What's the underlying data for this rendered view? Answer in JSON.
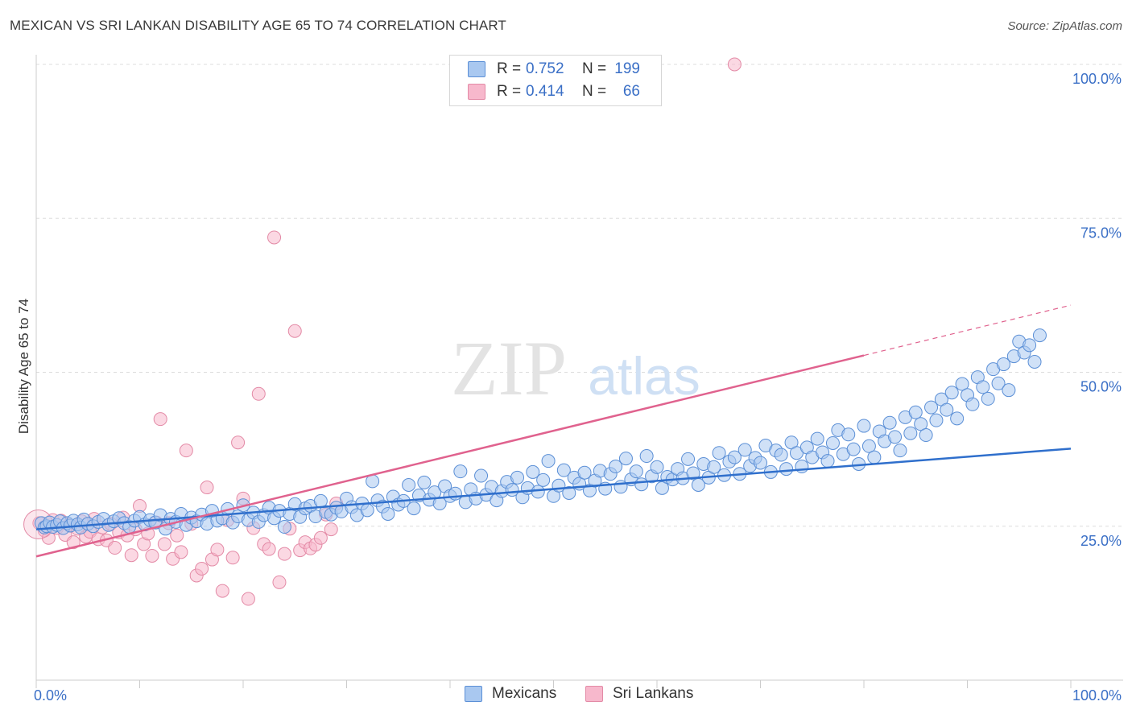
{
  "title": "MEXICAN VS SRI LANKAN DISABILITY AGE 65 TO 74 CORRELATION CHART",
  "source": "Source: ZipAtlas.com",
  "watermark": {
    "zip": "ZIP",
    "atlas": "atlas"
  },
  "legend": {
    "rows": [
      {
        "r_label": "R =",
        "r_value": "0.752",
        "n_label": "N =",
        "n_value": "199",
        "color": "#a9c8f0"
      },
      {
        "r_label": "R =",
        "r_value": "0.414",
        "n_label": "N =",
        "n_value": "66",
        "color": "#f7b8cc"
      }
    ]
  },
  "colors": {
    "blue_fill": "#a9c8f0",
    "blue_stroke": "#5b8fd6",
    "blue_line": "#2f6fcc",
    "pink_fill": "#f7b8cc",
    "pink_stroke": "#e38aa6",
    "pink_line": "#e0628e",
    "grid": "#dddddd",
    "tick_label": "#3a6fc6"
  },
  "chart_data": {
    "type": "scatter",
    "title": "MEXICAN VS SRI LANKAN DISABILITY AGE 65 TO 74 CORRELATION CHART",
    "xlabel": "",
    "ylabel": "Disability Age 65 to 74",
    "xlim": [
      0,
      100
    ],
    "ylim": [
      0,
      100
    ],
    "x_tick_labels": [
      "0.0%",
      "100.0%"
    ],
    "y_tick_labels": [
      "25.0%",
      "50.0%",
      "75.0%",
      "100.0%"
    ],
    "grid": true,
    "series": [
      {
        "name": "Mexicans",
        "r": 0.752,
        "n": 199,
        "trend": {
          "x": [
            0,
            100
          ],
          "y": [
            24.5,
            37.6
          ]
        },
        "points": [
          [
            0.5,
            25.5
          ],
          [
            0.8,
            24.8
          ],
          [
            1.0,
            25.0
          ],
          [
            1.3,
            25.6
          ],
          [
            1.6,
            24.9
          ],
          [
            2.0,
            25.2
          ],
          [
            2.3,
            25.8
          ],
          [
            2.6,
            24.7
          ],
          [
            3.0,
            25.5
          ],
          [
            3.3,
            25.1
          ],
          [
            3.6,
            25.9
          ],
          [
            4.0,
            25.3
          ],
          [
            4.3,
            24.8
          ],
          [
            4.6,
            26.1
          ],
          [
            5.0,
            25.4
          ],
          [
            5.5,
            25.0
          ],
          [
            6.0,
            25.7
          ],
          [
            6.5,
            26.2
          ],
          [
            7.0,
            25.2
          ],
          [
            7.5,
            25.8
          ],
          [
            8.0,
            26.3
          ],
          [
            8.5,
            25.5
          ],
          [
            9.0,
            24.9
          ],
          [
            9.5,
            25.9
          ],
          [
            10.0,
            26.5
          ],
          [
            10.5,
            25.3
          ],
          [
            11.0,
            26.0
          ],
          [
            11.5,
            25.6
          ],
          [
            12.0,
            26.8
          ],
          [
            12.5,
            24.6
          ],
          [
            13.0,
            26.2
          ],
          [
            13.5,
            25.7
          ],
          [
            14.0,
            27.0
          ],
          [
            14.5,
            25.2
          ],
          [
            15.0,
            26.4
          ],
          [
            15.5,
            25.8
          ],
          [
            16.0,
            26.9
          ],
          [
            16.5,
            25.4
          ],
          [
            17.0,
            27.5
          ],
          [
            17.5,
            25.9
          ],
          [
            18.0,
            26.3
          ],
          [
            18.5,
            27.8
          ],
          [
            19.0,
            25.6
          ],
          [
            19.5,
            26.6
          ],
          [
            20.0,
            28.4
          ],
          [
            20.5,
            26.0
          ],
          [
            21.0,
            27.2
          ],
          [
            21.5,
            25.7
          ],
          [
            22.0,
            26.8
          ],
          [
            22.5,
            28.0
          ],
          [
            23.0,
            26.3
          ],
          [
            23.5,
            27.5
          ],
          [
            24.0,
            24.9
          ],
          [
            24.5,
            27.0
          ],
          [
            25.0,
            28.6
          ],
          [
            25.5,
            26.5
          ],
          [
            26.0,
            27.9
          ],
          [
            26.5,
            28.3
          ],
          [
            27.0,
            26.6
          ],
          [
            27.5,
            29.1
          ],
          [
            28.0,
            27.3
          ],
          [
            28.5,
            26.9
          ],
          [
            29.0,
            28.0
          ],
          [
            29.5,
            27.4
          ],
          [
            30.0,
            29.5
          ],
          [
            30.5,
            28.1
          ],
          [
            31.0,
            26.8
          ],
          [
            31.5,
            28.7
          ],
          [
            32.0,
            27.6
          ],
          [
            32.5,
            32.3
          ],
          [
            33.0,
            29.2
          ],
          [
            33.5,
            28.2
          ],
          [
            34.0,
            27.0
          ],
          [
            34.5,
            29.8
          ],
          [
            35.0,
            28.5
          ],
          [
            35.5,
            29.1
          ],
          [
            36.0,
            31.7
          ],
          [
            36.5,
            27.9
          ],
          [
            37.0,
            30.0
          ],
          [
            37.5,
            32.1
          ],
          [
            38.0,
            29.3
          ],
          [
            38.5,
            30.5
          ],
          [
            39.0,
            28.7
          ],
          [
            39.5,
            31.5
          ],
          [
            40.0,
            29.9
          ],
          [
            40.5,
            30.3
          ],
          [
            41.0,
            33.9
          ],
          [
            41.5,
            28.9
          ],
          [
            42.0,
            31.0
          ],
          [
            42.5,
            29.5
          ],
          [
            43.0,
            33.2
          ],
          [
            43.5,
            30.1
          ],
          [
            44.0,
            31.4
          ],
          [
            44.5,
            29.2
          ],
          [
            45.0,
            30.7
          ],
          [
            45.5,
            32.2
          ],
          [
            46.0,
            30.9
          ],
          [
            46.5,
            32.9
          ],
          [
            47.0,
            29.7
          ],
          [
            47.5,
            31.2
          ],
          [
            48.0,
            33.8
          ],
          [
            48.5,
            30.6
          ],
          [
            49.0,
            32.5
          ],
          [
            49.5,
            35.6
          ],
          [
            50.0,
            29.9
          ],
          [
            50.5,
            31.6
          ],
          [
            51.0,
            34.1
          ],
          [
            51.5,
            30.4
          ],
          [
            52.0,
            32.9
          ],
          [
            52.5,
            31.9
          ],
          [
            53.0,
            33.7
          ],
          [
            53.5,
            30.8
          ],
          [
            54.0,
            32.4
          ],
          [
            54.5,
            34.0
          ],
          [
            55.0,
            31.1
          ],
          [
            55.5,
            33.5
          ],
          [
            56.0,
            34.7
          ],
          [
            56.5,
            31.4
          ],
          [
            57.0,
            36.0
          ],
          [
            57.5,
            32.6
          ],
          [
            58.0,
            33.9
          ],
          [
            58.5,
            31.8
          ],
          [
            59.0,
            36.4
          ],
          [
            59.5,
            33.1
          ],
          [
            60.0,
            34.6
          ],
          [
            60.5,
            31.2
          ],
          [
            61.0,
            33.0
          ],
          [
            61.5,
            32.6
          ],
          [
            62.0,
            34.3
          ],
          [
            62.5,
            32.8
          ],
          [
            63.0,
            35.9
          ],
          [
            63.5,
            33.6
          ],
          [
            64.0,
            31.7
          ],
          [
            64.5,
            35.1
          ],
          [
            65.0,
            32.9
          ],
          [
            65.5,
            34.6
          ],
          [
            66.0,
            36.9
          ],
          [
            66.5,
            33.3
          ],
          [
            67.0,
            35.5
          ],
          [
            67.5,
            36.2
          ],
          [
            68.0,
            33.5
          ],
          [
            68.5,
            37.4
          ],
          [
            69.0,
            34.8
          ],
          [
            69.5,
            36.1
          ],
          [
            70.0,
            35.3
          ],
          [
            70.5,
            38.1
          ],
          [
            71.0,
            33.8
          ],
          [
            71.5,
            37.3
          ],
          [
            72.0,
            36.6
          ],
          [
            72.5,
            34.3
          ],
          [
            73.0,
            38.6
          ],
          [
            73.5,
            36.9
          ],
          [
            74.0,
            34.7
          ],
          [
            74.5,
            37.8
          ],
          [
            75.0,
            36.2
          ],
          [
            75.5,
            39.2
          ],
          [
            76.0,
            37.0
          ],
          [
            76.5,
            35.6
          ],
          [
            77.0,
            38.5
          ],
          [
            77.5,
            40.6
          ],
          [
            78.0,
            36.7
          ],
          [
            78.5,
            39.9
          ],
          [
            79.0,
            37.5
          ],
          [
            79.5,
            35.1
          ],
          [
            80.0,
            41.3
          ],
          [
            80.5,
            38.0
          ],
          [
            81.0,
            36.2
          ],
          [
            81.5,
            40.4
          ],
          [
            82.0,
            38.8
          ],
          [
            82.5,
            41.8
          ],
          [
            83.0,
            39.5
          ],
          [
            83.5,
            37.3
          ],
          [
            84.0,
            42.7
          ],
          [
            84.5,
            40.1
          ],
          [
            85.0,
            43.5
          ],
          [
            85.5,
            41.6
          ],
          [
            86.0,
            39.8
          ],
          [
            86.5,
            44.3
          ],
          [
            87.0,
            42.2
          ],
          [
            87.5,
            45.6
          ],
          [
            88.0,
            43.9
          ],
          [
            88.5,
            46.7
          ],
          [
            89.0,
            42.5
          ],
          [
            89.5,
            48.1
          ],
          [
            90.0,
            46.3
          ],
          [
            90.5,
            44.8
          ],
          [
            91.0,
            49.2
          ],
          [
            91.5,
            47.6
          ],
          [
            92.0,
            45.7
          ],
          [
            92.5,
            50.5
          ],
          [
            93.0,
            48.2
          ],
          [
            93.5,
            51.3
          ],
          [
            94.0,
            47.1
          ],
          [
            94.5,
            52.6
          ],
          [
            95.0,
            55.0
          ],
          [
            95.5,
            53.2
          ],
          [
            96.0,
            54.4
          ],
          [
            96.5,
            51.7
          ],
          [
            97.0,
            56.0
          ]
        ]
      },
      {
        "name": "Sri Lankans",
        "r": 0.414,
        "n": 66,
        "trend": {
          "x": [
            0,
            100
          ],
          "y": [
            20.1,
            60.9
          ]
        },
        "points": [
          [
            0.3,
            25.5
          ],
          [
            0.8,
            24.3
          ],
          [
            1.2,
            23.1
          ],
          [
            1.6,
            26.0
          ],
          [
            2.0,
            24.7
          ],
          [
            2.4,
            25.9
          ],
          [
            2.8,
            23.6
          ],
          [
            3.2,
            25.2
          ],
          [
            3.6,
            22.4
          ],
          [
            4.0,
            24.6
          ],
          [
            4.4,
            25.8
          ],
          [
            4.8,
            23.3
          ],
          [
            5.2,
            24.1
          ],
          [
            5.6,
            26.2
          ],
          [
            6.0,
            22.9
          ],
          [
            6.4,
            24.8
          ],
          [
            6.8,
            22.7
          ],
          [
            7.2,
            25.4
          ],
          [
            7.6,
            21.5
          ],
          [
            8.0,
            24.0
          ],
          [
            8.4,
            26.4
          ],
          [
            8.8,
            23.5
          ],
          [
            9.2,
            20.3
          ],
          [
            9.6,
            24.5
          ],
          [
            10.0,
            28.3
          ],
          [
            10.4,
            22.1
          ],
          [
            10.8,
            23.8
          ],
          [
            11.2,
            20.2
          ],
          [
            11.6,
            25.6
          ],
          [
            12.0,
            42.4
          ],
          [
            12.4,
            22.1
          ],
          [
            12.8,
            25.5
          ],
          [
            13.2,
            19.7
          ],
          [
            13.6,
            23.5
          ],
          [
            14.0,
            20.8
          ],
          [
            14.5,
            37.3
          ],
          [
            15.0,
            25.4
          ],
          [
            15.5,
            17.0
          ],
          [
            16.0,
            18.1
          ],
          [
            16.5,
            31.3
          ],
          [
            17.0,
            19.6
          ],
          [
            17.5,
            21.2
          ],
          [
            18.0,
            14.5
          ],
          [
            18.5,
            26.0
          ],
          [
            19.0,
            19.9
          ],
          [
            19.5,
            38.6
          ],
          [
            20.0,
            29.5
          ],
          [
            20.5,
            13.2
          ],
          [
            21.0,
            24.7
          ],
          [
            21.5,
            46.5
          ],
          [
            22.0,
            22.1
          ],
          [
            22.5,
            21.3
          ],
          [
            23.0,
            71.9
          ],
          [
            23.5,
            15.9
          ],
          [
            24.0,
            20.5
          ],
          [
            24.5,
            24.6
          ],
          [
            25.0,
            56.7
          ],
          [
            25.5,
            21.1
          ],
          [
            26.0,
            22.4
          ],
          [
            26.5,
            21.4
          ],
          [
            27.0,
            22.0
          ],
          [
            27.5,
            23.1
          ],
          [
            28.0,
            26.9
          ],
          [
            28.5,
            24.5
          ],
          [
            29.0,
            28.7
          ],
          [
            67.5,
            100.0
          ]
        ]
      }
    ]
  }
}
